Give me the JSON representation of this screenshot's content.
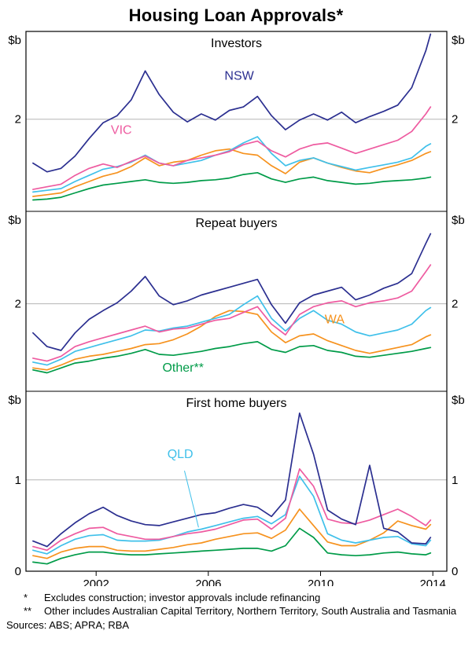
{
  "title": "Housing Loan Approvals*",
  "footnotes": [
    {
      "marker": "*",
      "text": "Excludes construction; investor approvals include refinancing"
    },
    {
      "marker": "**",
      "text": "Other includes Australian Capital Territory, Northern Territory, South Australia and Tasmania"
    }
  ],
  "sources": "Sources: ABS; APRA; RBA",
  "colors": {
    "nsw": "#2b2f90",
    "vic": "#ee5ba0",
    "qld": "#3fc0ea",
    "wa": "#f6921e",
    "other": "#009b48",
    "grid": "#b5b5b5",
    "frame": "#000000"
  },
  "chart_data": {
    "type": "line",
    "title": "Housing Loan Approvals*",
    "unit": "$b",
    "xlim": [
      1999.5,
      2014.5
    ],
    "xticks": [
      2002,
      2006,
      2010,
      2014
    ],
    "x": [
      1999.75,
      2000.25,
      2000.75,
      2001.25,
      2001.75,
      2002.25,
      2002.75,
      2003.25,
      2003.75,
      2004.25,
      2004.75,
      2005.25,
      2005.75,
      2006.25,
      2006.75,
      2007.25,
      2007.75,
      2008.25,
      2008.75,
      2009.25,
      2009.75,
      2010.25,
      2010.75,
      2011.25,
      2011.75,
      2012.25,
      2012.75,
      2013.25,
      2013.75,
      2013.92
    ],
    "panels": [
      {
        "title": "Investors",
        "ylim": [
          0.95,
          3.0
        ],
        "gridlines": [
          2
        ],
        "yticks": [
          {
            "value": 2,
            "label": "2"
          }
        ],
        "series": [
          {
            "name": "NSW",
            "color": "#2b2f90",
            "values": [
              1.5,
              1.4,
              1.44,
              1.58,
              1.78,
              1.96,
              2.04,
              2.22,
              2.55,
              2.28,
              2.08,
              1.97,
              2.06,
              1.99,
              2.1,
              2.14,
              2.26,
              2.04,
              1.88,
              1.99,
              2.06,
              1.99,
              2.08,
              1.96,
              2.03,
              2.09,
              2.16,
              2.36,
              2.78,
              2.97
            ]
          },
          {
            "name": "VIC",
            "color": "#ee5ba0",
            "values": [
              1.2,
              1.23,
              1.26,
              1.36,
              1.44,
              1.49,
              1.45,
              1.52,
              1.58,
              1.5,
              1.47,
              1.53,
              1.56,
              1.59,
              1.63,
              1.71,
              1.75,
              1.64,
              1.57,
              1.66,
              1.71,
              1.73,
              1.67,
              1.61,
              1.66,
              1.71,
              1.76,
              1.86,
              2.06,
              2.14
            ]
          },
          {
            "name": "QLD",
            "color": "#3fc0ea",
            "values": [
              1.17,
              1.19,
              1.21,
              1.29,
              1.36,
              1.43,
              1.46,
              1.51,
              1.59,
              1.5,
              1.47,
              1.5,
              1.53,
              1.59,
              1.64,
              1.73,
              1.8,
              1.61,
              1.47,
              1.53,
              1.56,
              1.5,
              1.46,
              1.42,
              1.45,
              1.48,
              1.51,
              1.56,
              1.69,
              1.72
            ]
          },
          {
            "name": "WA",
            "color": "#f6921e",
            "values": [
              1.12,
              1.14,
              1.16,
              1.23,
              1.29,
              1.35,
              1.39,
              1.46,
              1.56,
              1.47,
              1.51,
              1.53,
              1.59,
              1.64,
              1.66,
              1.61,
              1.59,
              1.47,
              1.38,
              1.51,
              1.56,
              1.5,
              1.45,
              1.41,
              1.39,
              1.44,
              1.48,
              1.53,
              1.61,
              1.63
            ]
          },
          {
            "name": "Other",
            "color": "#009b48",
            "values": [
              1.08,
              1.09,
              1.11,
              1.16,
              1.21,
              1.25,
              1.27,
              1.29,
              1.31,
              1.28,
              1.27,
              1.28,
              1.3,
              1.31,
              1.33,
              1.37,
              1.39,
              1.32,
              1.28,
              1.32,
              1.34,
              1.3,
              1.28,
              1.26,
              1.27,
              1.29,
              1.3,
              1.31,
              1.33,
              1.34
            ]
          }
        ],
        "annotations": [
          {
            "text": "NSW",
            "x": 2007.1,
            "y": 2.45,
            "color": "#2b2f90"
          },
          {
            "text": "VIC",
            "x": 2002.9,
            "y": 1.83,
            "color": "#ee5ba0"
          }
        ]
      },
      {
        "title": "Repeat buyers",
        "ylim": [
          1.1,
          2.95
        ],
        "gridlines": [
          2
        ],
        "yticks": [
          {
            "value": 2,
            "label": "2"
          }
        ],
        "series": [
          {
            "name": "NSW",
            "color": "#2b2f90",
            "values": [
              1.7,
              1.56,
              1.52,
              1.7,
              1.84,
              1.93,
              2.01,
              2.13,
              2.28,
              2.08,
              1.99,
              2.03,
              2.09,
              2.13,
              2.17,
              2.21,
              2.25,
              1.99,
              1.8,
              2.01,
              2.09,
              2.13,
              2.17,
              2.04,
              2.09,
              2.16,
              2.21,
              2.31,
              2.62,
              2.72
            ]
          },
          {
            "name": "VIC",
            "color": "#ee5ba0",
            "values": [
              1.44,
              1.41,
              1.46,
              1.56,
              1.61,
              1.65,
              1.69,
              1.73,
              1.77,
              1.71,
              1.74,
              1.75,
              1.79,
              1.83,
              1.85,
              1.91,
              1.97,
              1.79,
              1.68,
              1.89,
              1.97,
              2.01,
              2.03,
              1.97,
              2.01,
              2.03,
              2.06,
              2.13,
              2.33,
              2.4
            ]
          },
          {
            "name": "QLD",
            "color": "#3fc0ea",
            "values": [
              1.4,
              1.37,
              1.43,
              1.51,
              1.55,
              1.59,
              1.63,
              1.67,
              1.73,
              1.72,
              1.75,
              1.77,
              1.81,
              1.85,
              1.89,
              1.99,
              2.08,
              1.85,
              1.72,
              1.85,
              1.93,
              1.83,
              1.79,
              1.71,
              1.67,
              1.7,
              1.73,
              1.79,
              1.93,
              1.96
            ]
          },
          {
            "name": "WA",
            "color": "#f6921e",
            "values": [
              1.34,
              1.32,
              1.37,
              1.43,
              1.46,
              1.48,
              1.51,
              1.54,
              1.58,
              1.59,
              1.63,
              1.69,
              1.77,
              1.87,
              1.93,
              1.92,
              1.89,
              1.71,
              1.6,
              1.67,
              1.69,
              1.62,
              1.57,
              1.52,
              1.49,
              1.52,
              1.55,
              1.58,
              1.66,
              1.68
            ]
          },
          {
            "name": "Other",
            "color": "#009b48",
            "values": [
              1.32,
              1.29,
              1.34,
              1.39,
              1.41,
              1.44,
              1.46,
              1.49,
              1.53,
              1.48,
              1.47,
              1.49,
              1.51,
              1.54,
              1.56,
              1.59,
              1.61,
              1.53,
              1.5,
              1.56,
              1.57,
              1.52,
              1.5,
              1.46,
              1.45,
              1.47,
              1.49,
              1.51,
              1.54,
              1.55
            ]
          }
        ],
        "annotations": [
          {
            "text": "WA",
            "x": 2010.5,
            "y": 1.8,
            "color": "#f6921e"
          },
          {
            "text": "Other**",
            "x": 2005.1,
            "y": 1.3,
            "color": "#009b48"
          }
        ]
      },
      {
        "title": "First home buyers",
        "ylim": [
          0,
          1.97
        ],
        "gridlines": [
          1
        ],
        "yticks": [
          {
            "value": 1,
            "label": "1"
          },
          {
            "value": 0,
            "label": "0"
          }
        ],
        "series": [
          {
            "name": "NSW",
            "color": "#2b2f90",
            "values": [
              0.33,
              0.27,
              0.41,
              0.53,
              0.63,
              0.7,
              0.61,
              0.55,
              0.51,
              0.5,
              0.54,
              0.58,
              0.62,
              0.64,
              0.69,
              0.73,
              0.7,
              0.6,
              0.78,
              1.73,
              1.28,
              0.67,
              0.57,
              0.51,
              1.16,
              0.47,
              0.43,
              0.31,
              0.3,
              0.37
            ]
          },
          {
            "name": "VIC",
            "color": "#ee5ba0",
            "values": [
              0.27,
              0.23,
              0.34,
              0.41,
              0.47,
              0.48,
              0.41,
              0.38,
              0.35,
              0.35,
              0.38,
              0.41,
              0.43,
              0.46,
              0.51,
              0.56,
              0.57,
              0.46,
              0.58,
              1.12,
              0.93,
              0.57,
              0.53,
              0.52,
              0.56,
              0.62,
              0.68,
              0.6,
              0.5,
              0.56
            ]
          },
          {
            "name": "QLD",
            "color": "#3fc0ea",
            "values": [
              0.23,
              0.19,
              0.28,
              0.35,
              0.39,
              0.4,
              0.34,
              0.33,
              0.33,
              0.34,
              0.38,
              0.43,
              0.46,
              0.5,
              0.54,
              0.58,
              0.6,
              0.52,
              0.62,
              1.04,
              0.82,
              0.41,
              0.34,
              0.31,
              0.34,
              0.37,
              0.38,
              0.3,
              0.28,
              0.34
            ]
          },
          {
            "name": "WA",
            "color": "#f6921e",
            "values": [
              0.17,
              0.14,
              0.21,
              0.25,
              0.27,
              0.27,
              0.23,
              0.22,
              0.22,
              0.24,
              0.26,
              0.29,
              0.31,
              0.35,
              0.38,
              0.41,
              0.42,
              0.36,
              0.45,
              0.68,
              0.5,
              0.32,
              0.28,
              0.28,
              0.34,
              0.42,
              0.55,
              0.5,
              0.46,
              0.51
            ]
          },
          {
            "name": "Other",
            "color": "#009b48",
            "values": [
              0.1,
              0.08,
              0.14,
              0.18,
              0.21,
              0.21,
              0.19,
              0.18,
              0.18,
              0.19,
              0.2,
              0.21,
              0.22,
              0.23,
              0.24,
              0.25,
              0.25,
              0.22,
              0.28,
              0.47,
              0.37,
              0.2,
              0.18,
              0.17,
              0.18,
              0.2,
              0.21,
              0.19,
              0.18,
              0.2
            ]
          }
        ],
        "annotations": [
          {
            "text": "QLD",
            "x": 2005.0,
            "y": 1.24,
            "color": "#3fc0ea",
            "leader": {
              "x1": 2005.15,
              "y1": 1.1,
              "x2": 2005.65,
              "y2": 0.48
            }
          }
        ]
      }
    ]
  }
}
